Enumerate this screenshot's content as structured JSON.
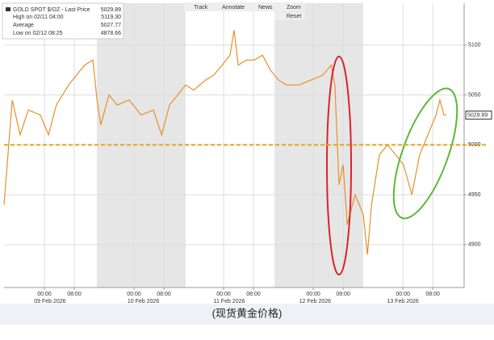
{
  "chart_data": {
    "type": "line",
    "legend": {
      "title": "GOLD SPOT $/OZ - Last Price",
      "last": "5029.89",
      "rows": [
        [
          "High on 02/11 04:00",
          "5119.30"
        ],
        [
          "Average",
          "5027.77"
        ],
        [
          "Low on 02/12 08:25",
          "4878.66"
        ]
      ]
    },
    "toolbar": [
      "Track",
      "Annotate",
      "News",
      "Zoom",
      "Reset"
    ],
    "caption": "(现货黄金价格)",
    "series": [
      {
        "name": "GOLD SPOT $/OZ",
        "color": "#e8902a",
        "x": [
          -10.8,
          -8.6,
          -6.5,
          -4.3,
          -1.1,
          1.1,
          3.2,
          6.5,
          8.6,
          10.8,
          13,
          14.1,
          15.1,
          17.3,
          19.5,
          22.7,
          25.9,
          29.2,
          31.4,
          33.5,
          35.7,
          37.8,
          40,
          43.2,
          45.4,
          47.6,
          49.7,
          50.8,
          51.9,
          54.1,
          56.2,
          58.4,
          60.5,
          62.7,
          64.9,
          68.1,
          71.4,
          74.6,
          76.8,
          77.8,
          78.9,
          80,
          81.1,
          83.2,
          85.4,
          86.5,
          87.6,
          89.7,
          91.9,
          94.1,
          96.2,
          98.4,
          100.5,
          102.7,
          104.9,
          105.9,
          107,
          107.7
        ],
        "values": [
          4940,
          5045,
          5010,
          5035,
          5030,
          5010,
          5040,
          5060,
          5070,
          5080,
          5085,
          5045,
          5020,
          5050,
          5040,
          5045,
          5030,
          5035,
          5010,
          5040,
          5050,
          5060,
          5055,
          5065,
          5070,
          5080,
          5090,
          5115,
          5080,
          5085,
          5085,
          5090,
          5075,
          5065,
          5060,
          5060,
          5065,
          5070,
          5080,
          5060,
          4960,
          4980,
          4920,
          4950,
          4930,
          4890,
          4940,
          4990,
          5000,
          4990,
          4980,
          4950,
          4990,
          5010,
          5030,
          5045,
          5030,
          5030
        ]
      }
    ],
    "reference_line": {
      "value": 5000,
      "color": "#e8a317"
    },
    "last_price": {
      "value": 5029.89,
      "label": "5029.89"
    },
    "xlim": [
      -10.8,
      112.4
    ],
    "ylim": [
      4857,
      5142
    ],
    "yticks": [
      4900,
      4950,
      5000,
      5050,
      5100
    ],
    "xticks": [
      {
        "value": 0,
        "label": "00:00"
      },
      {
        "value": 8,
        "label": "08:00"
      },
      {
        "value": 24,
        "label": "00:00"
      },
      {
        "value": 32,
        "label": "08:00"
      },
      {
        "value": 48,
        "label": "00:00"
      },
      {
        "value": 56,
        "label": "08:00"
      },
      {
        "value": 72,
        "label": "00:00"
      },
      {
        "value": 80,
        "label": "08:00"
      },
      {
        "value": 96,
        "label": "00:00"
      },
      {
        "value": 104,
        "label": "08:00"
      }
    ],
    "date_labels": [
      {
        "value": 1.5,
        "label": "09 Feb 2026"
      },
      {
        "value": 26.5,
        "label": "10 Feb 2026"
      },
      {
        "value": 49.5,
        "label": "11 Feb 2026"
      },
      {
        "value": 72.5,
        "label": "12 Feb 2026"
      },
      {
        "value": 96,
        "label": "13 Feb 2026"
      }
    ],
    "grid": true
  }
}
